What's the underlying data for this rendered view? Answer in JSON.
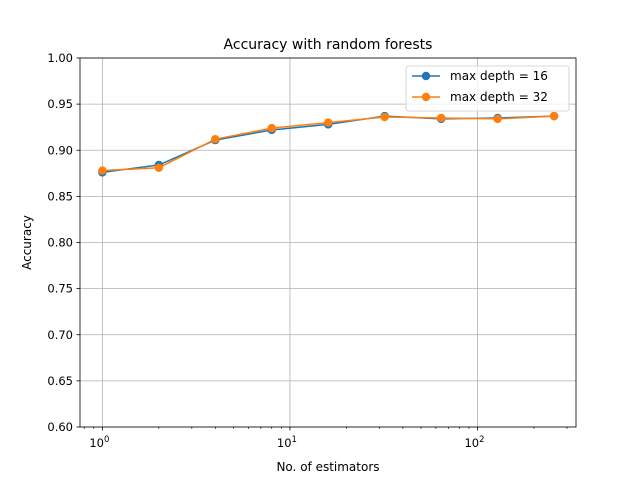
{
  "chart_data": {
    "type": "line",
    "title": "Accuracy with random forests",
    "xlabel": "No. of estimators",
    "ylabel": "Accuracy",
    "xscale": "log",
    "xlim": [
      0.76,
      335
    ],
    "ylim": [
      0.6,
      1.0
    ],
    "x": [
      1,
      2,
      4,
      8,
      16,
      32,
      64,
      128,
      256
    ],
    "x_major_ticks": [
      1,
      10,
      100
    ],
    "x_tick_labels": [
      {
        "base": "10",
        "exp": "0"
      },
      {
        "base": "10",
        "exp": "1"
      },
      {
        "base": "10",
        "exp": "2"
      }
    ],
    "y_ticks": [
      0.6,
      0.65,
      0.7,
      0.75,
      0.8,
      0.85,
      0.9,
      0.95,
      1.0
    ],
    "y_tick_labels": [
      "0.60",
      "0.65",
      "0.70",
      "0.75",
      "0.80",
      "0.85",
      "0.90",
      "0.95",
      "1.00"
    ],
    "grid": true,
    "legend_position": "top-right",
    "series": [
      {
        "name": "max depth = 16",
        "color": "#1f77b4",
        "values": [
          0.876,
          0.884,
          0.911,
          0.922,
          0.928,
          0.937,
          0.934,
          0.935,
          0.937
        ]
      },
      {
        "name": "max depth = 32",
        "color": "#ff7f0e",
        "values": [
          0.878,
          0.881,
          0.912,
          0.924,
          0.93,
          0.936,
          0.935,
          0.934,
          0.937
        ]
      }
    ]
  }
}
